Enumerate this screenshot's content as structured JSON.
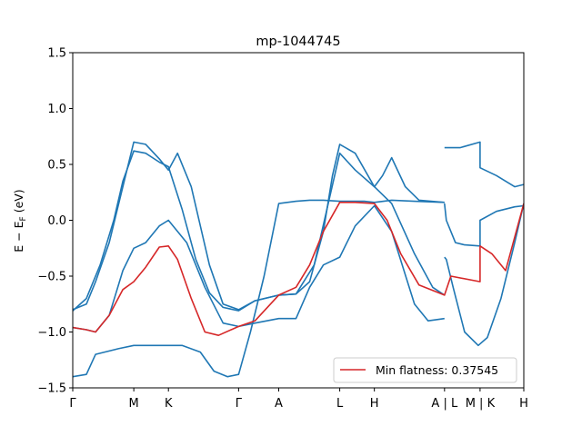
{
  "chart_data": {
    "type": "line",
    "title": "mp-1044745",
    "xlabel": "",
    "ylabel": "E − E_F (eV)",
    "ylim": [
      -1.5,
      1.5
    ],
    "grid": false,
    "legend_placement": "lower-right",
    "legend": [
      {
        "label": "Min flatness: 0.37545",
        "color": "#d62728"
      }
    ],
    "yticks": [
      -1.5,
      -1.0,
      -0.5,
      0.0,
      0.5,
      1.0,
      1.5
    ],
    "ytick_labels": [
      "−1.5",
      "−1.0",
      "−0.5",
      "0.0",
      "0.5",
      "1.0",
      "1.5"
    ],
    "xticks": [
      0,
      1.34,
      2.1,
      3.64,
      4.52,
      5.86,
      6.62,
      8.16,
      8.94,
      9.9
    ],
    "xtick_labels": [
      "Γ",
      "M",
      "K",
      "Γ",
      "A",
      "L",
      "H",
      "A | L",
      "M | K",
      "H"
    ],
    "xlim": [
      0,
      9.9
    ],
    "series": [
      {
        "color": "#1f77b4",
        "x": [
          0,
          0.3,
          0.5,
          0.7,
          1.0,
          1.34,
          1.6,
          1.9,
          2.1,
          2.4,
          2.8,
          3.1,
          3.4,
          3.64,
          3.9,
          4.2,
          4.52,
          4.9,
          5.2,
          5.5,
          5.86,
          6.1,
          6.4,
          6.62,
          7.0,
          7.5,
          8.16
        ],
        "y": [
          -1.4,
          -1.38,
          -1.2,
          -1.18,
          -1.15,
          -1.12,
          -1.12,
          -1.12,
          -1.12,
          -1.12,
          -1.18,
          -1.35,
          -1.4,
          -1.38,
          -1.0,
          -0.5,
          0.15,
          0.17,
          0.18,
          0.18,
          0.17,
          0.17,
          0.17,
          0.16,
          0.18,
          0.17,
          0.16
        ]
      },
      {
        "color": "#1f77b4",
        "x": [
          0,
          0.3,
          0.5,
          0.8,
          1.1,
          1.34,
          1.6,
          1.9,
          2.1,
          2.5,
          2.9,
          3.3,
          3.64,
          4.0,
          4.52,
          4.9,
          5.2,
          5.5,
          5.86,
          6.2,
          6.62,
          7.0,
          7.5,
          7.8,
          8.16
        ],
        "y": [
          -0.96,
          -0.98,
          -1.0,
          -0.85,
          -0.45,
          -0.25,
          -0.2,
          -0.05,
          0.0,
          -0.2,
          -0.6,
          -0.92,
          -0.95,
          -0.92,
          -0.88,
          -0.88,
          -0.6,
          -0.4,
          -0.33,
          -0.05,
          0.13,
          -0.1,
          -0.75,
          -0.9,
          -0.88
        ]
      },
      {
        "color": "#1f77b4",
        "x": [
          0,
          0.3,
          0.5,
          0.8,
          1.1,
          1.34,
          1.6,
          1.9,
          2.1,
          2.3,
          2.6,
          3.0,
          3.3,
          3.64,
          4.0,
          4.52,
          4.9,
          5.2,
          5.5,
          5.7,
          5.86,
          6.2,
          6.62,
          6.8,
          7.0,
          7.3,
          7.6,
          8.16
        ],
        "y": [
          -0.8,
          -0.75,
          -0.55,
          -0.2,
          0.3,
          0.7,
          0.68,
          0.55,
          0.45,
          0.6,
          0.3,
          -0.4,
          -0.75,
          -0.8,
          -0.72,
          -0.67,
          -0.66,
          -0.55,
          -0.1,
          0.4,
          0.68,
          0.6,
          0.3,
          0.4,
          0.56,
          0.3,
          0.18,
          0.16
        ]
      },
      {
        "color": "#1f77b4",
        "x": [
          0,
          0.3,
          0.6,
          0.9,
          1.1,
          1.34,
          1.6,
          1.9,
          2.1,
          2.4,
          2.7,
          3.0,
          3.3,
          3.64,
          4.0,
          4.52,
          4.9,
          5.3,
          5.86,
          6.2,
          6.62,
          7.0,
          7.5,
          7.9,
          8.16
        ],
        "y": [
          -0.81,
          -0.7,
          -0.4,
          0.0,
          0.35,
          0.62,
          0.6,
          0.52,
          0.48,
          0.1,
          -0.35,
          -0.65,
          -0.78,
          -0.81,
          -0.72,
          -0.67,
          -0.66,
          -0.4,
          0.6,
          0.45,
          0.3,
          0.15,
          -0.3,
          -0.6,
          -0.67
        ]
      },
      {
        "color": "#1f77b4",
        "x": [
          8.16,
          8.2,
          8.5,
          8.94,
          8.94,
          9.3,
          9.7,
          9.9
        ],
        "y": [
          0.65,
          0.65,
          0.65,
          0.7,
          0.47,
          0.4,
          0.3,
          0.32
        ]
      },
      {
        "color": "#1f77b4",
        "x": [
          8.16,
          8.2,
          8.4,
          8.6,
          8.94,
          8.94,
          9.3,
          9.7,
          9.9
        ],
        "y": [
          0.15,
          0.0,
          -0.2,
          -0.22,
          -0.23,
          0.0,
          0.08,
          0.12,
          0.13
        ]
      },
      {
        "color": "#1f77b4",
        "x": [
          8.16,
          8.2,
          8.35,
          8.6,
          8.9,
          9.1,
          9.4,
          9.7,
          9.9
        ],
        "y": [
          -0.33,
          -0.35,
          -0.6,
          -1.0,
          -1.12,
          -1.05,
          -0.7,
          -0.2,
          0.15
        ]
      },
      {
        "color": "#d62728",
        "x": [
          0,
          0.3,
          0.5,
          0.8,
          1.1,
          1.34,
          1.6,
          1.9,
          2.1,
          2.3,
          2.6,
          2.9,
          3.2,
          3.64,
          4.0,
          4.52,
          4.9,
          5.2,
          5.5,
          5.86,
          6.2,
          6.62,
          6.9,
          7.2,
          7.6,
          8.16,
          8.3,
          8.94,
          8.94,
          9.2,
          9.5,
          9.9
        ],
        "y": [
          -0.96,
          -0.98,
          -1.0,
          -0.85,
          -0.62,
          -0.55,
          -0.42,
          -0.24,
          -0.23,
          -0.35,
          -0.7,
          -1.0,
          -1.03,
          -0.95,
          -0.9,
          -0.67,
          -0.6,
          -0.4,
          -0.1,
          0.16,
          0.16,
          0.15,
          0.0,
          -0.3,
          -0.58,
          -0.67,
          -0.5,
          -0.55,
          -0.23,
          -0.3,
          -0.45,
          0.15
        ]
      }
    ]
  }
}
